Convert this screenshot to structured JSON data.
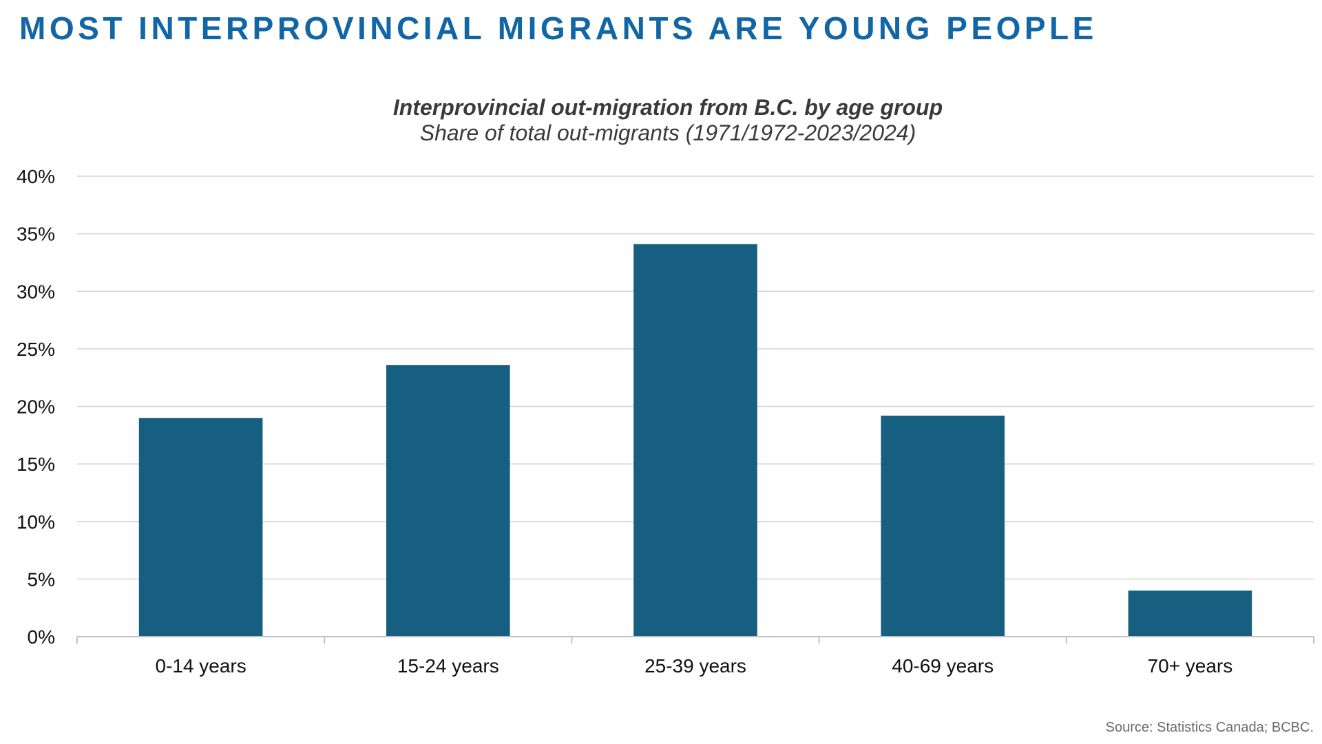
{
  "headline": "MOST INTERPROVINCIAL MIGRANTS ARE YOUNG PEOPLE",
  "source": "Source: Statistics Canada; BCBC.",
  "colors": {
    "headline": "#1266a6",
    "bar": "#165f80",
    "grid": "#d4d4d4",
    "axis": "#c0c0c0"
  },
  "chart_data": {
    "type": "bar",
    "title": "Interprovincial out-migration from B.C. by age group",
    "subtitle": "Share of total out-migrants (1971/1972-2023/2024)",
    "categories": [
      "0-14 years",
      "15-24 years",
      "25-39 years",
      "40-69 years",
      "70+ years"
    ],
    "values": [
      19.0,
      23.6,
      34.1,
      19.2,
      4.0
    ],
    "unit": "%",
    "ylim": [
      0,
      40
    ],
    "yticks": [
      "0%",
      "5%",
      "10%",
      "15%",
      "20%",
      "25%",
      "30%",
      "35%",
      "40%"
    ],
    "xlabel": "",
    "ylabel": "",
    "grid": true,
    "legend": "none"
  }
}
